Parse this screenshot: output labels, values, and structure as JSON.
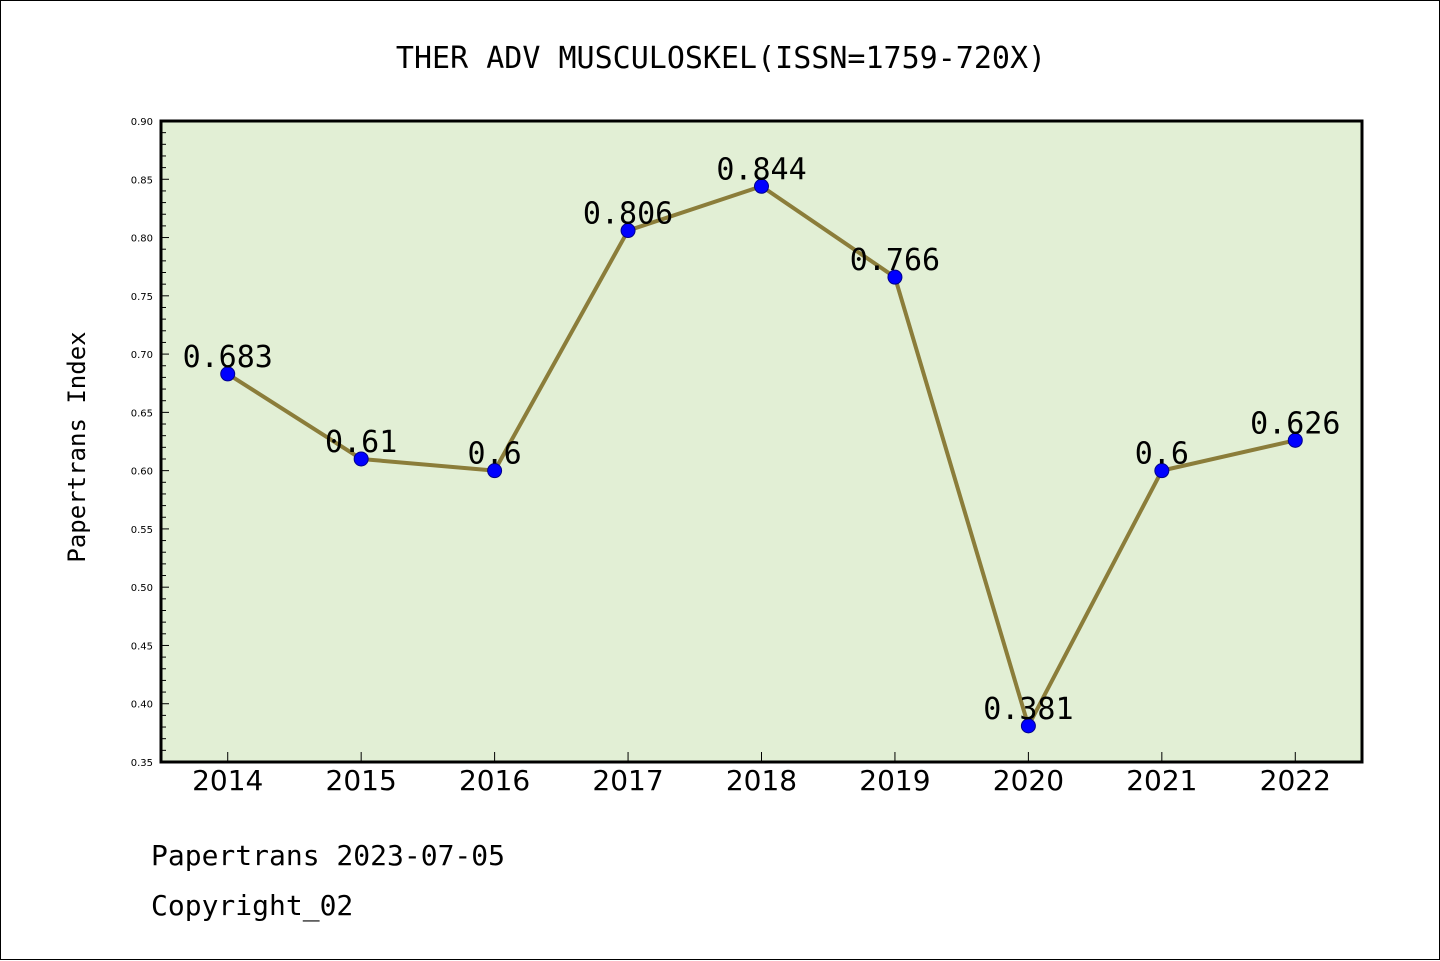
{
  "chart_data": {
    "type": "line",
    "title": "THER ADV MUSCULOSKEL(ISSN=1759-720X)",
    "ylabel": "Papertrans Index",
    "xlabel": "",
    "categories": [
      "2014",
      "2015",
      "2016",
      "2017",
      "2018",
      "2019",
      "2020",
      "2021",
      "2022"
    ],
    "series": [
      {
        "values": [
          0.683,
          0.61,
          0.6,
          0.806,
          0.844,
          0.766,
          0.381,
          0.6,
          0.626
        ],
        "labels": [
          "0.683",
          "0.61",
          "0.6",
          "0.806",
          "0.844",
          "0.766",
          "0.381",
          "0.6",
          "0.626"
        ],
        "line_color": "#8b7d3a",
        "marker_color": "#0000ff"
      }
    ],
    "ylim": [
      0.35,
      0.9
    ],
    "yticks": [
      "0.35",
      "0.40",
      "0.45",
      "0.50",
      "0.55",
      "0.60",
      "0.65",
      "0.70",
      "0.75",
      "0.80",
      "0.85",
      "0.90"
    ],
    "plot_background": "#e2efd5",
    "grid": false,
    "legend": "none"
  },
  "footer": {
    "line1": "Papertrans 2023-07-05",
    "line2": "Copyright_02"
  }
}
